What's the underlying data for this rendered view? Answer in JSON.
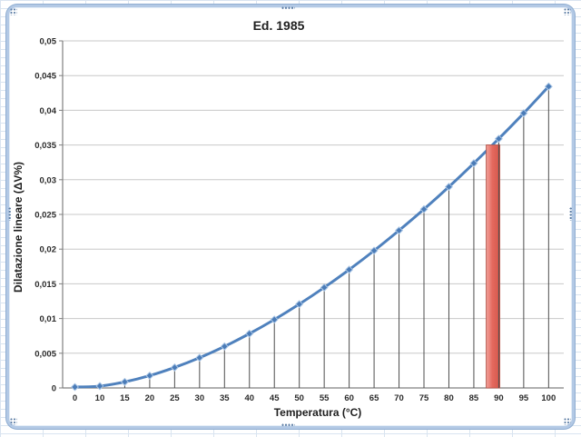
{
  "app": {
    "surface": "excel-worksheet",
    "selected_object": "chart"
  },
  "chart_data": {
    "type": "line",
    "title": "Ed. 1985",
    "xlabel": "Temperatura (°C)",
    "ylabel": "Dilatazione lineare (ΔV%)",
    "categories": [
      "0",
      "10",
      "15",
      "20",
      "25",
      "30",
      "35",
      "40",
      "45",
      "50",
      "55",
      "60",
      "65",
      "70",
      "75",
      "80",
      "85",
      "90",
      "95",
      "100"
    ],
    "values": [
      0.00013,
      0.00027,
      0.00087,
      0.00177,
      0.00295,
      0.00435,
      0.00598,
      0.00782,
      0.00985,
      0.01207,
      0.01447,
      0.01704,
      0.01978,
      0.02269,
      0.02575,
      0.02898,
      0.03237,
      0.0359,
      0.03958,
      0.04343
    ],
    "ylim": [
      0,
      0.05
    ],
    "ytick_step": 0.005,
    "ytick_labels": [
      "0",
      "0,005",
      "0,01",
      "0,015",
      "0,02",
      "0,025",
      "0,03",
      "0,035",
      "0,04",
      "0,045",
      "0,05"
    ],
    "grid": "horizontal",
    "legend": "none",
    "smooth": true,
    "drop_lines": true,
    "marker": "diamond",
    "colors": {
      "line": "#4f81bd",
      "marker_fill": "#4a7bb7",
      "marker_edge": "#a8c4e4",
      "gridline": "#c8c8c8",
      "axis": "#808080",
      "drop_line": "#4d4d4d",
      "text": "#1f1f1f"
    },
    "highlight_bar": {
      "from_temp": 87.5,
      "to_temp": 90,
      "top_value": 0.035,
      "fill_light": "#f2a19a",
      "fill": "#e4695e",
      "fill_dark": "#d5584c",
      "edge": "#b4554a"
    }
  }
}
